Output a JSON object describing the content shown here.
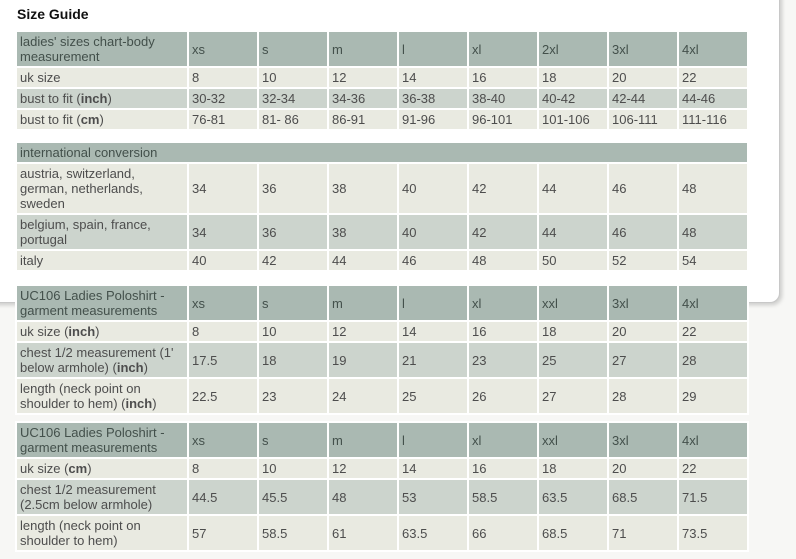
{
  "page": {
    "title": "Size Guide"
  },
  "colors": {
    "page_bg": "#f7f7f5",
    "panel_border": "#c8c8c8",
    "header_bg": "#aab9b2",
    "row_light": "#e9eae1",
    "row_dark": "#ccd4cd",
    "text": "#4d4d4d",
    "header_text": "#43504b",
    "title_text": "#111111"
  },
  "tables": [
    {
      "name": "ladies-body-measurement",
      "gap_class": "gap-a",
      "header_cells": [
        "ladies' sizes chart-body measurement",
        "xs",
        "s",
        "m",
        "l",
        "xl",
        "2xl",
        "3xl",
        "4xl"
      ],
      "rows": [
        {
          "shade": "light",
          "label": [
            {
              "t": "uk size"
            }
          ],
          "values": [
            "8",
            "10",
            "12",
            "14",
            "16",
            "18",
            "20",
            "22"
          ]
        },
        {
          "shade": "dark",
          "label": [
            {
              "t": "bust to fit ("
            },
            {
              "t": "inch",
              "b": true
            },
            {
              "t": ")"
            }
          ],
          "values": [
            "30-32",
            "32-34",
            "34-36",
            "36-38",
            "38-40",
            "40-42",
            "42-44",
            "44-46"
          ]
        },
        {
          "shade": "light",
          "label": [
            {
              "t": "bust to fit ("
            },
            {
              "t": "cm",
              "b": true
            },
            {
              "t": ")"
            }
          ],
          "values": [
            "76-81",
            "81- 86",
            "86-91",
            "91-96",
            "96-101",
            "101-106",
            "106-111",
            "111-116"
          ]
        }
      ]
    },
    {
      "name": "international-conversion",
      "gap_class": "gap-b",
      "header_span": "international conversion",
      "rows": [
        {
          "shade": "light",
          "label": [
            {
              "t": "austria, switzerland, german, netherlands, sweden"
            }
          ],
          "values": [
            "34",
            "36",
            "38",
            "40",
            "42",
            "44",
            "46",
            "48"
          ]
        },
        {
          "shade": "dark",
          "label": [
            {
              "t": "belgium, spain, france, portugal"
            }
          ],
          "values": [
            "34",
            "36",
            "38",
            "40",
            "42",
            "44",
            "46",
            "48"
          ]
        },
        {
          "shade": "light",
          "label": [
            {
              "t": "italy"
            }
          ],
          "values": [
            "40",
            "42",
            "44",
            "46",
            "48",
            "50",
            "52",
            "54"
          ]
        }
      ]
    },
    {
      "name": "uc106-garment-inch",
      "gap_class": "gap-c",
      "header_cells": [
        "UC106 Ladies Poloshirt - garment measurements",
        "xs",
        "s",
        "m",
        "l",
        "xl",
        "xxl",
        "3xl",
        "4xl"
      ],
      "rows": [
        {
          "shade": "light",
          "label": [
            {
              "t": "uk size ("
            },
            {
              "t": "inch",
              "b": true
            },
            {
              "t": ")"
            }
          ],
          "values": [
            "8",
            "10",
            "12",
            "14",
            "16",
            "18",
            "20",
            "22"
          ]
        },
        {
          "shade": "dark",
          "label": [
            {
              "t": "chest 1/2 measurement (1' below armhole) ("
            },
            {
              "t": "inch",
              "b": true
            },
            {
              "t": ")"
            }
          ],
          "values": [
            "17.5",
            "18",
            "19",
            "21",
            "23",
            "25",
            "27",
            "28"
          ]
        },
        {
          "shade": "light",
          "label": [
            {
              "t": "length (neck point on shoulder to hem) ("
            },
            {
              "t": "inch",
              "b": true
            },
            {
              "t": ")"
            }
          ],
          "values": [
            "22.5",
            "23",
            "24",
            "25",
            "26",
            "27",
            "28",
            "29"
          ]
        }
      ]
    },
    {
      "name": "uc106-garment-cm",
      "gap_class": "",
      "header_cells": [
        "UC106 Ladies Poloshirt - garment measurements",
        "xs",
        "s",
        "m",
        "l",
        "xl",
        "xxl",
        "3xl",
        "4xl"
      ],
      "rows": [
        {
          "shade": "light",
          "label": [
            {
              "t": "uk size ("
            },
            {
              "t": "cm",
              "b": true
            },
            {
              "t": ")"
            }
          ],
          "values": [
            "8",
            "10",
            "12",
            "14",
            "16",
            "18",
            "20",
            "22"
          ]
        },
        {
          "shade": "dark",
          "label": [
            {
              "t": "chest 1/2 measurement (2.5cm below armhole)"
            }
          ],
          "values": [
            "44.5",
            "45.5",
            "48",
            "53",
            "58.5",
            "63.5",
            "68.5",
            "71.5"
          ]
        },
        {
          "shade": "light",
          "label": [
            {
              "t": "length (neck point on shoulder to hem)"
            }
          ],
          "values": [
            "57",
            "58.5",
            "61",
            "63.5",
            "66",
            "68.5",
            "71",
            "73.5"
          ]
        }
      ]
    }
  ]
}
